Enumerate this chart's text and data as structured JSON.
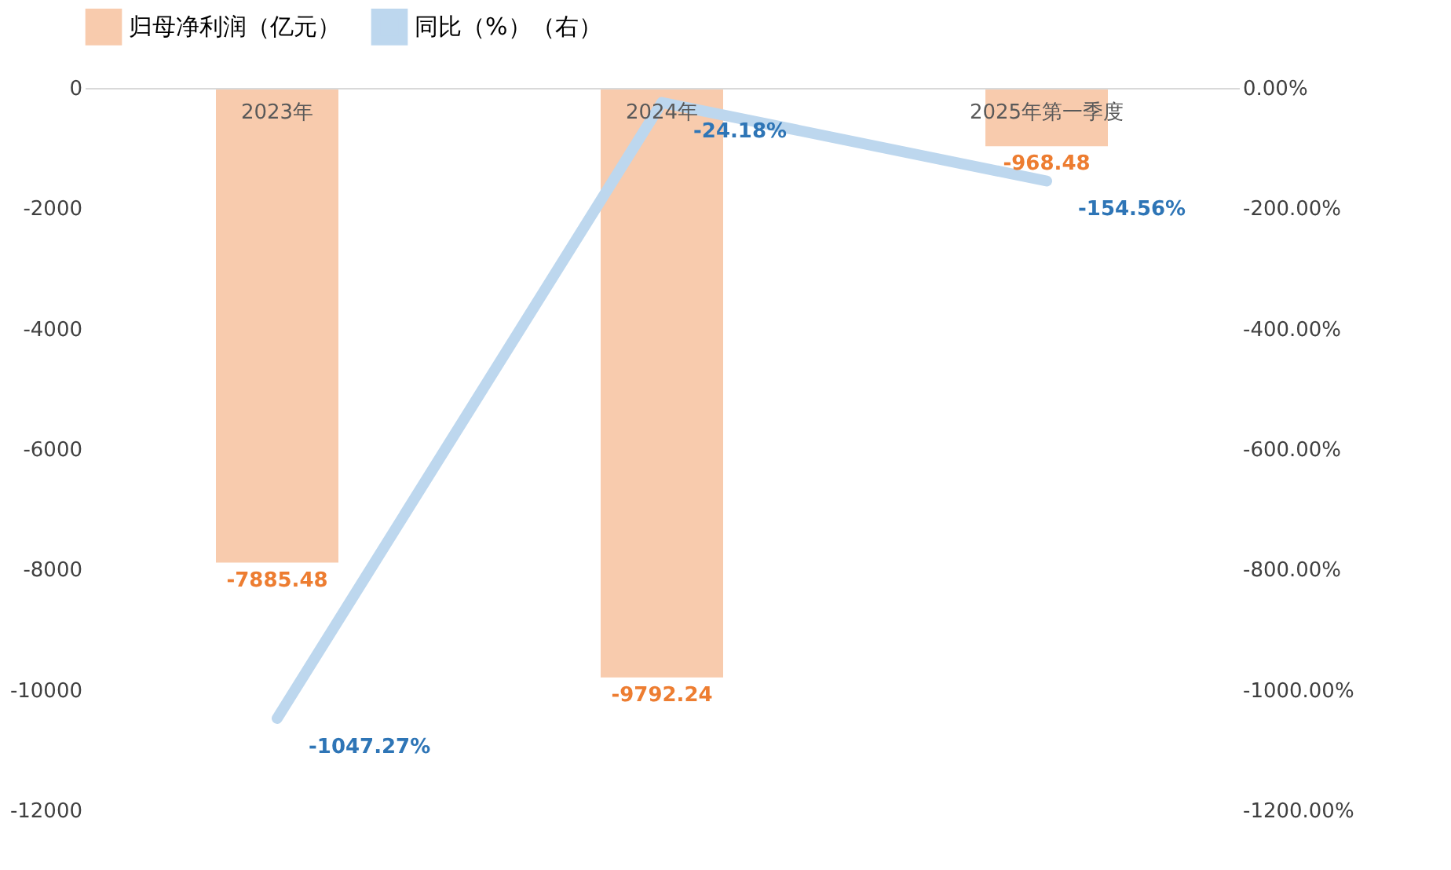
{
  "chart_data": {
    "type": "bar",
    "categories": [
      "2023年",
      "2024年",
      "2025年第一季度"
    ],
    "series": [
      {
        "name": "归母净利润（亿元）",
        "color": "#f8cbad",
        "values": [
          -7885.48,
          -9792.24,
          -968.48
        ],
        "value_labels": [
          "-7885.48",
          "-9792.24",
          "-968.48"
        ]
      },
      {
        "name": "同比（%）（右）",
        "type": "line",
        "axis": "y2",
        "color": "#bdd7ee",
        "values": [
          -1047.27,
          -24.18,
          -154.56
        ],
        "value_labels": [
          "-1047.27%",
          "-24.18%",
          "-154.56%"
        ]
      }
    ],
    "ylim": [
      -12000,
      0
    ],
    "yticks": [
      -12000,
      -10000,
      -8000,
      -6000,
      -4000,
      -2000,
      0
    ],
    "y2lim": [
      -1200,
      0
    ],
    "y2ticks": [
      {
        "value": -1200,
        "label": "-1200.00%"
      },
      {
        "value": -1000,
        "label": "-1000.00%"
      },
      {
        "value": -800,
        "label": "-800.00%"
      },
      {
        "value": -600,
        "label": "-600.00%"
      },
      {
        "value": -400,
        "label": "-400.00%"
      },
      {
        "value": -200,
        "label": "-200.00%"
      },
      {
        "value": 0,
        "label": "0.00%"
      }
    ],
    "legend": "top",
    "grid": false
  }
}
